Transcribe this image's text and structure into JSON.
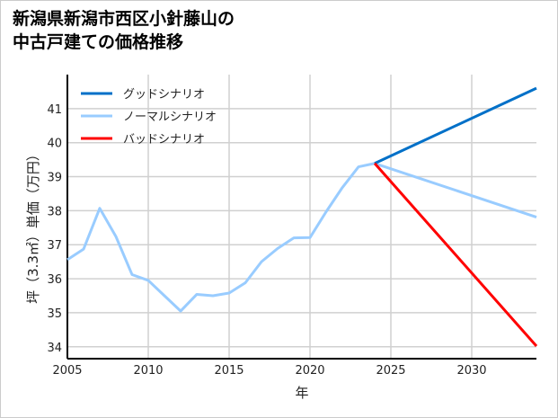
{
  "title_line1": "新潟県新潟市西区小針藤山の",
  "title_line2": "中古戸建ての価格推移",
  "chart_data": {
    "type": "line",
    "title": "新潟県新潟市西区小針藤山の中古戸建ての価格推移",
    "xlabel": "年",
    "ylabel": "坪（3.3㎡）単価（万円）",
    "xlim": [
      2005,
      2034
    ],
    "ylim": [
      33.65,
      42
    ],
    "grid": true,
    "legend_position": "top-left",
    "x_ticks": [
      2005,
      2010,
      2015,
      2020,
      2025,
      2030
    ],
    "y_ticks": [
      34,
      35,
      36,
      37,
      38,
      39,
      40,
      41
    ],
    "series": [
      {
        "name": "グッドシナリオ",
        "color": "#0070c8",
        "x": [
          2024,
          2034
        ],
        "values": [
          39.39,
          41.6
        ]
      },
      {
        "name": "ノーマルシナリオ",
        "color": "#99ccff",
        "x": [
          2005,
          2006,
          2007,
          2008,
          2009,
          2010,
          2011,
          2012,
          2013,
          2014,
          2015,
          2016,
          2017,
          2018,
          2019,
          2020,
          2021,
          2022,
          2023,
          2024,
          2034
        ],
        "values": [
          36.56,
          36.87,
          38.07,
          37.24,
          36.12,
          35.95,
          35.5,
          35.05,
          35.54,
          35.5,
          35.58,
          35.88,
          36.5,
          36.89,
          37.2,
          37.21,
          37.97,
          38.68,
          39.29,
          39.39,
          37.81
        ]
      },
      {
        "name": "バッドシナリオ",
        "color": "#ff0000",
        "x": [
          2024,
          2034
        ],
        "values": [
          39.39,
          34.02
        ]
      }
    ]
  }
}
